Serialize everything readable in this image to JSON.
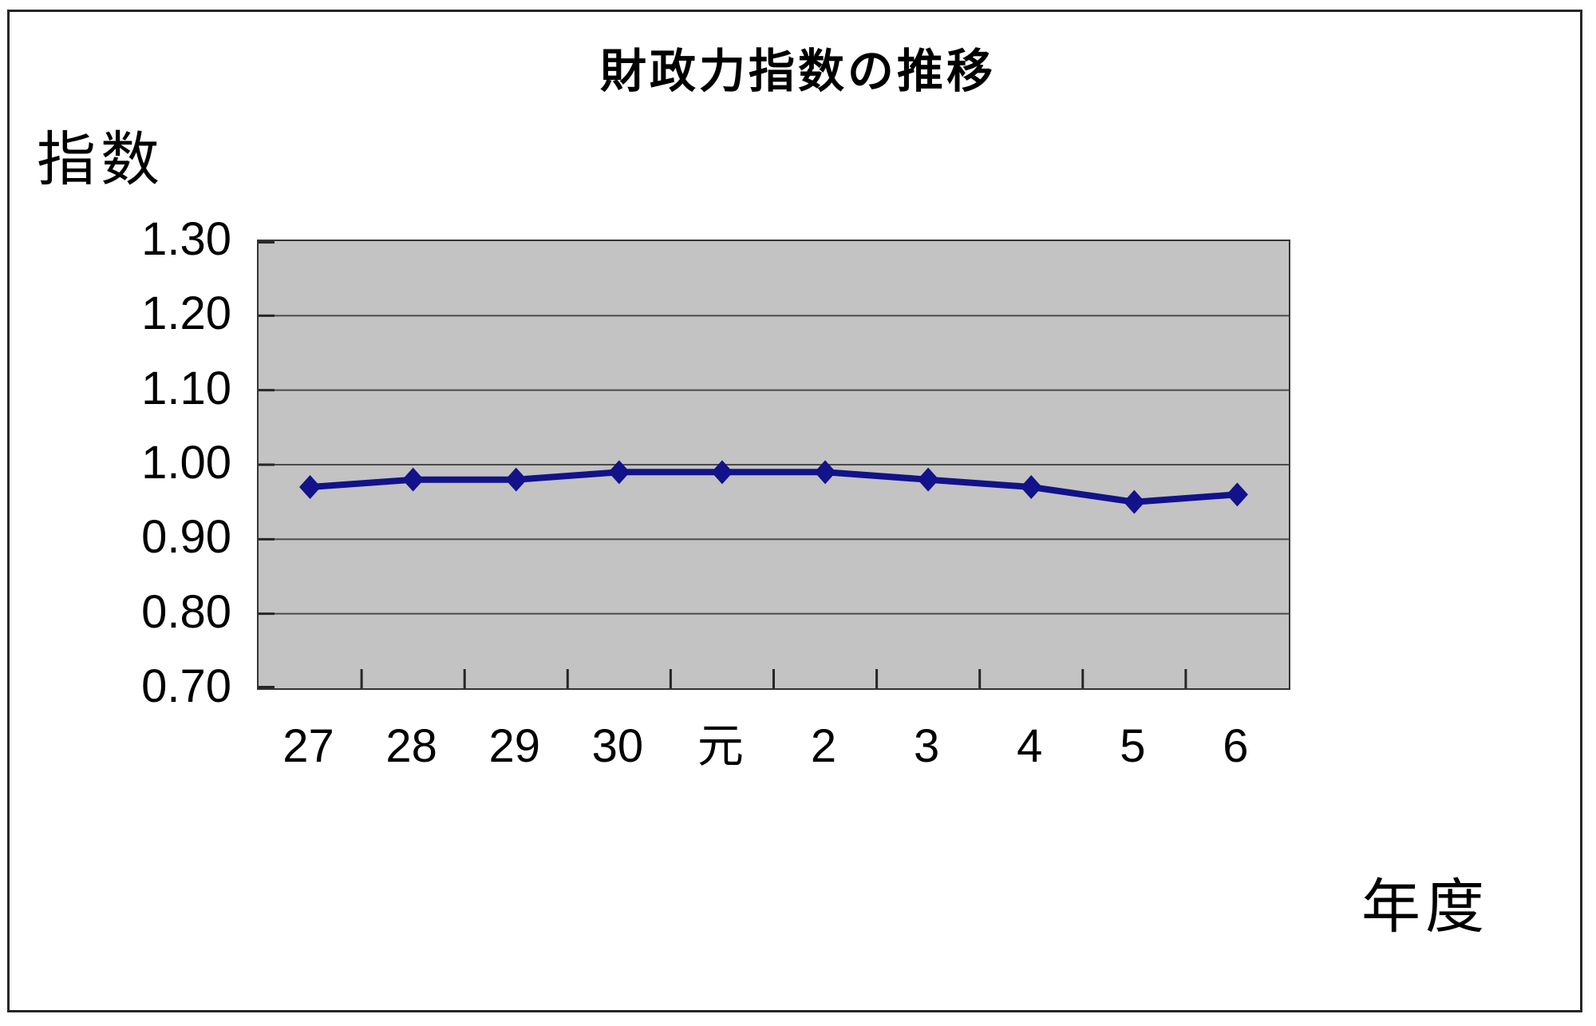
{
  "window": {
    "background": "#ffffff",
    "border_color": "#262626"
  },
  "chart_data": {
    "type": "line",
    "title": "財政力指数の推移",
    "ylabel": "指数",
    "xlabel": "年度",
    "categories": [
      "27",
      "28",
      "29",
      "30",
      "元",
      "2",
      "3",
      "4",
      "5",
      "6"
    ],
    "values": [
      0.97,
      0.98,
      0.98,
      0.99,
      0.99,
      0.99,
      0.98,
      0.97,
      0.95,
      0.96
    ],
    "ylim": [
      0.7,
      1.3
    ],
    "ytick_step": 0.1,
    "ytick_format_decimals": 2,
    "grid": true,
    "legend": "none",
    "marker": "diamond",
    "colors": {
      "line": "#12128a",
      "marker": "#12128a",
      "plot_background": "#c3c3c3",
      "gridline": "#4a4a4a",
      "axis": "#262626",
      "text": "#000000"
    }
  }
}
